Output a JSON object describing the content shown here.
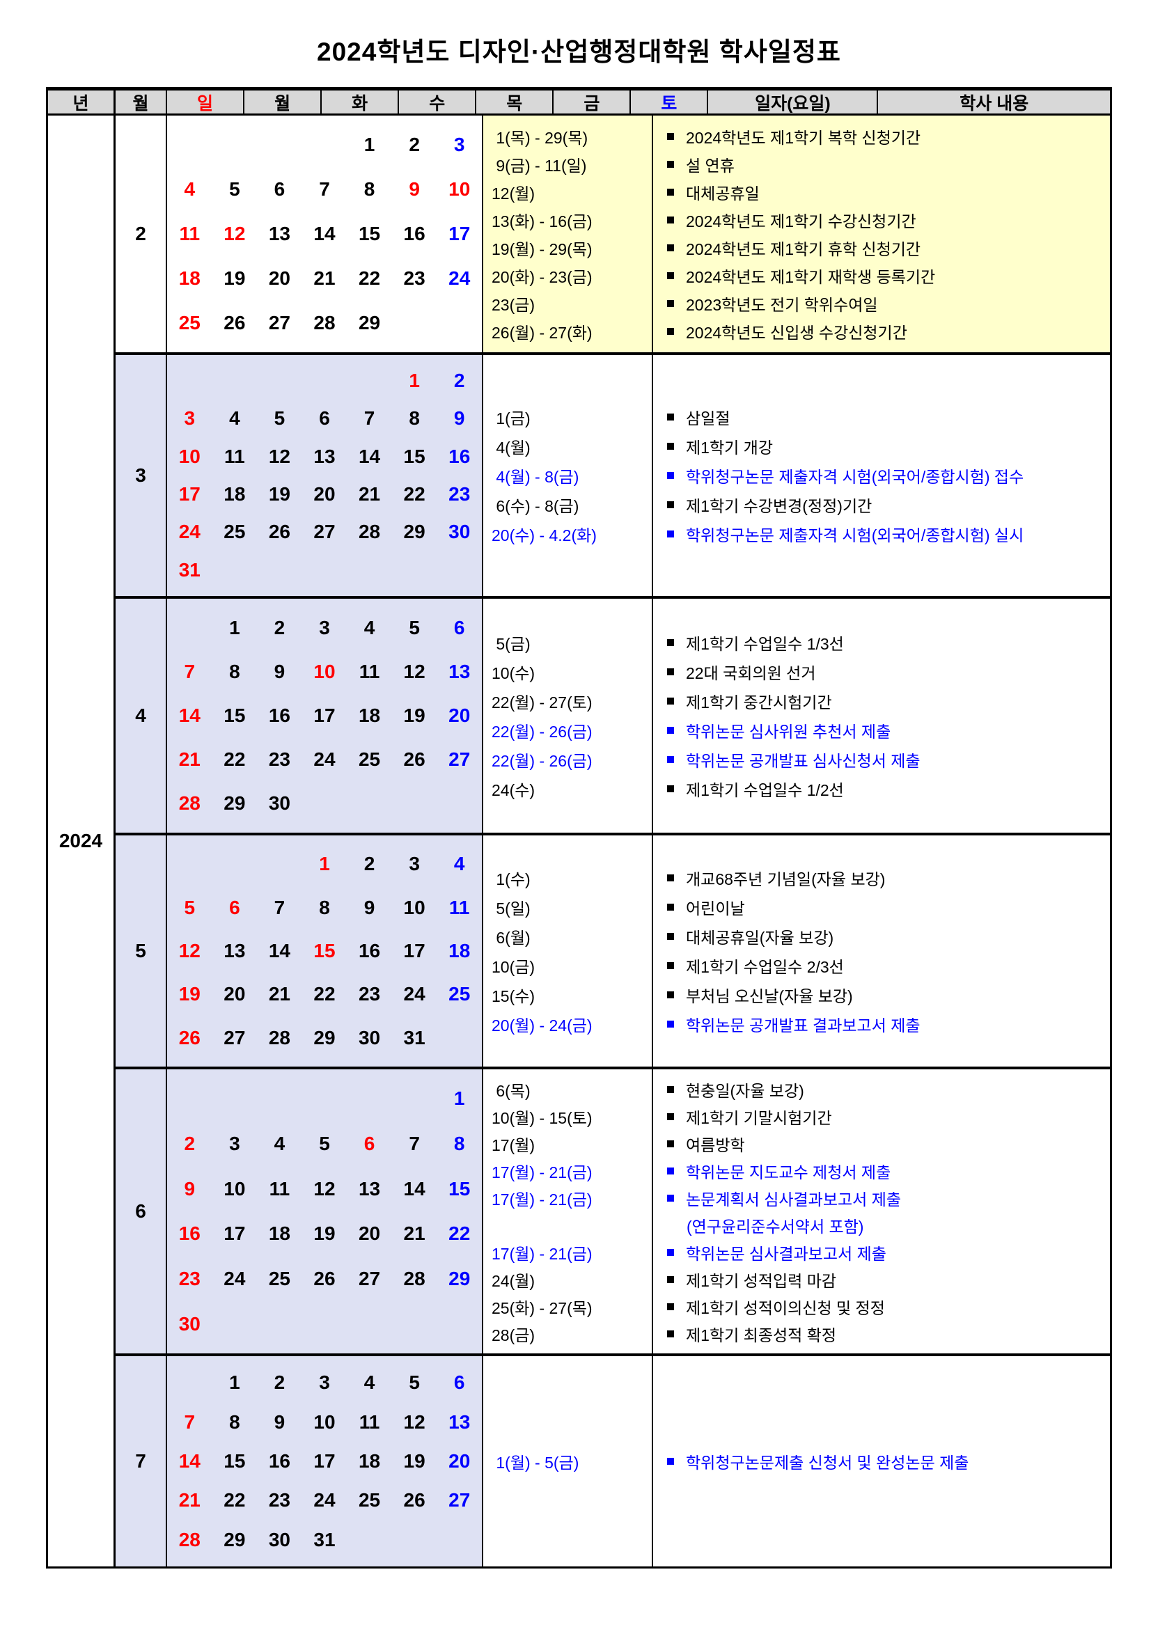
{
  "title": "2024학년도  디자인·산업행정대학원  학사일정표",
  "colors": {
    "k": "#000000",
    "r": "#ff0000",
    "b": "#0000ff",
    "header_bg": "#d8d8d8",
    "feb_right_bg": "#ffffcc",
    "cal_bg": "#dee1f3",
    "white": "#ffffff"
  },
  "header": {
    "year": "년",
    "month": "월",
    "days": [
      "일",
      "월",
      "화",
      "수",
      "목",
      "금",
      "토"
    ],
    "day_codes": [
      "r",
      "k",
      "k",
      "k",
      "k",
      "k",
      "b"
    ],
    "date": "일자(요일)",
    "content": "학사 내용"
  },
  "year_label": "2024",
  "months": [
    {
      "label": "2",
      "cal_white": true,
      "right_yellow": true,
      "weeks": [
        [
          "",
          "",
          "",
          "",
          "k1",
          "k2",
          "b3"
        ],
        [
          "r4",
          "k5",
          "k6",
          "k7",
          "k8",
          "r9",
          "r10"
        ],
        [
          "r11",
          "r12",
          "k13",
          "k14",
          "k15",
          "k16",
          "b17"
        ],
        [
          "r18",
          "k19",
          "k20",
          "k21",
          "k22",
          "k23",
          "b24"
        ],
        [
          "r25",
          "k26",
          "k27",
          "k28",
          "k29",
          "",
          ""
        ]
      ],
      "rows": [
        {
          "date": " 1(목) - 29(목)",
          "dc": "k",
          "text": "2024학년도 제1학기 복학 신청기간",
          "tc": "k",
          "bullet": true
        },
        {
          "date": " 9(금) - 11(일)",
          "dc": "k",
          "text": "설 연휴",
          "tc": "k",
          "bullet": true
        },
        {
          "date": "12(월)",
          "dc": "k",
          "text": "대체공휴일",
          "tc": "k",
          "bullet": true
        },
        {
          "date": "13(화) - 16(금)",
          "dc": "k",
          "text": "2024학년도 제1학기 수강신청기간",
          "tc": "k",
          "bullet": true
        },
        {
          "date": "19(월) - 29(목)",
          "dc": "k",
          "text": "2024학년도 제1학기 휴학 신청기간",
          "tc": "k",
          "bullet": true
        },
        {
          "date": "20(화) - 23(금)",
          "dc": "k",
          "text": "2024학년도 제1학기 재학생 등록기간",
          "tc": "k",
          "bullet": true
        },
        {
          "date": "23(금)",
          "dc": "k",
          "text": "2023학년도 전기 학위수여일",
          "tc": "k",
          "bullet": true
        },
        {
          "date": "26(월) - 27(화)",
          "dc": "k",
          "text": "2024학년도 신입생 수강신청기간",
          "tc": "k",
          "bullet": true
        }
      ]
    },
    {
      "label": "3",
      "cal_white": false,
      "right_yellow": false,
      "weeks": [
        [
          "",
          "",
          "",
          "",
          "",
          "r1",
          "b2"
        ],
        [
          "r3",
          "k4",
          "k5",
          "k6",
          "k7",
          "k8",
          "b9"
        ],
        [
          "r10",
          "k11",
          "k12",
          "k13",
          "k14",
          "k15",
          "b16"
        ],
        [
          "r17",
          "k18",
          "k19",
          "k20",
          "k21",
          "k22",
          "b23"
        ],
        [
          "r24",
          "k25",
          "k26",
          "k27",
          "k28",
          "k29",
          "b30"
        ],
        [
          "r31",
          "",
          "",
          "",
          "",
          "",
          ""
        ]
      ],
      "rows": [
        {
          "date": " 1(금)",
          "dc": "k",
          "text": "삼일절",
          "tc": "k",
          "bullet": true
        },
        {
          "date": " 4(월)",
          "dc": "k",
          "text": "제1학기 개강",
          "tc": "k",
          "bullet": true
        },
        {
          "date": " 4(월) - 8(금)",
          "dc": "b",
          "text": "학위청구논문 제출자격 시험(외국어/종합시험) 접수",
          "tc": "b",
          "bullet": true
        },
        {
          "date": " 6(수) - 8(금)",
          "dc": "k",
          "text": "제1학기 수강변경(정정)기간",
          "tc": "k",
          "bullet": true
        },
        {
          "date": "20(수) - 4.2(화)",
          "dc": "b",
          "text": "학위청구논문 제출자격 시험(외국어/종합시험) 실시",
          "tc": "b",
          "bullet": true
        }
      ]
    },
    {
      "label": "4",
      "cal_white": false,
      "right_yellow": false,
      "weeks": [
        [
          "",
          "k1",
          "k2",
          "k3",
          "k4",
          "k5",
          "b6"
        ],
        [
          "r7",
          "k8",
          "k9",
          "r10",
          "k11",
          "k12",
          "b13"
        ],
        [
          "r14",
          "k15",
          "k16",
          "k17",
          "k18",
          "k19",
          "b20"
        ],
        [
          "r21",
          "k22",
          "k23",
          "k24",
          "k25",
          "k26",
          "b27"
        ],
        [
          "r28",
          "k29",
          "k30",
          "",
          "",
          "",
          ""
        ]
      ],
      "rows": [
        {
          "date": " 5(금)",
          "dc": "k",
          "text": "제1학기 수업일수 1/3선",
          "tc": "k",
          "bullet": true
        },
        {
          "date": "10(수)",
          "dc": "k",
          "text": "22대 국회의원 선거",
          "tc": "k",
          "bullet": true
        },
        {
          "date": "22(월) - 27(토)",
          "dc": "k",
          "text": "제1학기 중간시험기간",
          "tc": "k",
          "bullet": true
        },
        {
          "date": "22(월) - 26(금)",
          "dc": "b",
          "text": "학위논문 심사위원 추천서 제출",
          "tc": "b",
          "bullet": true
        },
        {
          "date": "22(월) - 26(금)",
          "dc": "b",
          "text": "학위논문 공개발표 심사신청서 제출",
          "tc": "b",
          "bullet": true
        },
        {
          "date": "24(수)",
          "dc": "k",
          "text": "제1학기 수업일수 1/2선",
          "tc": "k",
          "bullet": true
        }
      ]
    },
    {
      "label": "5",
      "cal_white": false,
      "right_yellow": false,
      "weeks": [
        [
          "",
          "",
          "",
          "r1",
          "k2",
          "k3",
          "b4"
        ],
        [
          "r5",
          "r6",
          "k7",
          "k8",
          "k9",
          "k10",
          "b11"
        ],
        [
          "r12",
          "k13",
          "k14",
          "r15",
          "k16",
          "k17",
          "b18"
        ],
        [
          "r19",
          "k20",
          "k21",
          "k22",
          "k23",
          "k24",
          "b25"
        ],
        [
          "r26",
          "k27",
          "k28",
          "k29",
          "k30",
          "k31",
          ""
        ]
      ],
      "rows": [
        {
          "date": " 1(수)",
          "dc": "k",
          "text": "개교68주년 기념일(자율 보강)",
          "tc": "k",
          "bullet": true
        },
        {
          "date": " 5(일)",
          "dc": "k",
          "text": "어린이날",
          "tc": "k",
          "bullet": true
        },
        {
          "date": " 6(월)",
          "dc": "k",
          "text": "대체공휴일(자율 보강)",
          "tc": "k",
          "bullet": true
        },
        {
          "date": "10(금)",
          "dc": "k",
          "text": "제1학기 수업일수 2/3선",
          "tc": "k",
          "bullet": true
        },
        {
          "date": "15(수)",
          "dc": "k",
          "text": "부처님 오신날(자율 보강)",
          "tc": "k",
          "bullet": true
        },
        {
          "date": "20(월) - 24(금)",
          "dc": "b",
          "text": "학위논문 공개발표 결과보고서 제출",
          "tc": "b",
          "bullet": true
        }
      ]
    },
    {
      "label": "6",
      "cal_white": false,
      "right_yellow": false,
      "weeks": [
        [
          "",
          "",
          "",
          "",
          "",
          "",
          "b1"
        ],
        [
          "r2",
          "k3",
          "k4",
          "k5",
          "r6",
          "k7",
          "b8"
        ],
        [
          "r9",
          "k10",
          "k11",
          "k12",
          "k13",
          "k14",
          "b15"
        ],
        [
          "r16",
          "k17",
          "k18",
          "k19",
          "k20",
          "k21",
          "b22"
        ],
        [
          "r23",
          "k24",
          "k25",
          "k26",
          "k27",
          "k28",
          "b29"
        ],
        [
          "r30",
          "",
          "",
          "",
          "",
          "",
          ""
        ]
      ],
      "rows": [
        {
          "date": " 6(목)",
          "dc": "k",
          "text": "현충일(자율 보강)",
          "tc": "k",
          "bullet": true
        },
        {
          "date": "10(월) - 15(토)",
          "dc": "k",
          "text": "제1학기 기말시험기간",
          "tc": "k",
          "bullet": true
        },
        {
          "date": "17(월)",
          "dc": "k",
          "text": "여름방학",
          "tc": "k",
          "bullet": true
        },
        {
          "date": "17(월) - 21(금)",
          "dc": "b",
          "text": "학위논문 지도교수 제청서 제출",
          "tc": "b",
          "bullet": true
        },
        {
          "date": "17(월) - 21(금)",
          "dc": "b",
          "text": "논문계획서 심사결과보고서 제출",
          "tc": "b",
          "bullet": true
        },
        {
          "date": "",
          "dc": "b",
          "text": "(연구윤리준수서약서 포함)",
          "tc": "b",
          "bullet": false
        },
        {
          "date": "17(월) - 21(금)",
          "dc": "b",
          "text": "학위논문 심사결과보고서 제출",
          "tc": "b",
          "bullet": true
        },
        {
          "date": "24(월)",
          "dc": "k",
          "text": "제1학기 성적입력 마감",
          "tc": "k",
          "bullet": true
        },
        {
          "date": "25(화) - 27(목)",
          "dc": "k",
          "text": "제1학기 성적이의신청 및 정정",
          "tc": "k",
          "bullet": true
        },
        {
          "date": "28(금)",
          "dc": "k",
          "text": "제1학기 최종성적 확정",
          "tc": "k",
          "bullet": true
        }
      ]
    },
    {
      "label": "7",
      "cal_white": false,
      "right_yellow": false,
      "weeks": [
        [
          "",
          "k1",
          "k2",
          "k3",
          "k4",
          "k5",
          "b6"
        ],
        [
          "r7",
          "k8",
          "k9",
          "k10",
          "k11",
          "k12",
          "b13"
        ],
        [
          "r14",
          "k15",
          "k16",
          "k17",
          "k18",
          "k19",
          "b20"
        ],
        [
          "r21",
          "k22",
          "k23",
          "k24",
          "k25",
          "k26",
          "b27"
        ],
        [
          "r28",
          "k29",
          "k30",
          "k31",
          "",
          "",
          ""
        ]
      ],
      "rows": [
        {
          "date": " 1(월) - 5(금)",
          "dc": "b",
          "text": "학위청구논문제출 신청서 및 완성논문 제출",
          "tc": "b",
          "bullet": true
        }
      ]
    }
  ]
}
